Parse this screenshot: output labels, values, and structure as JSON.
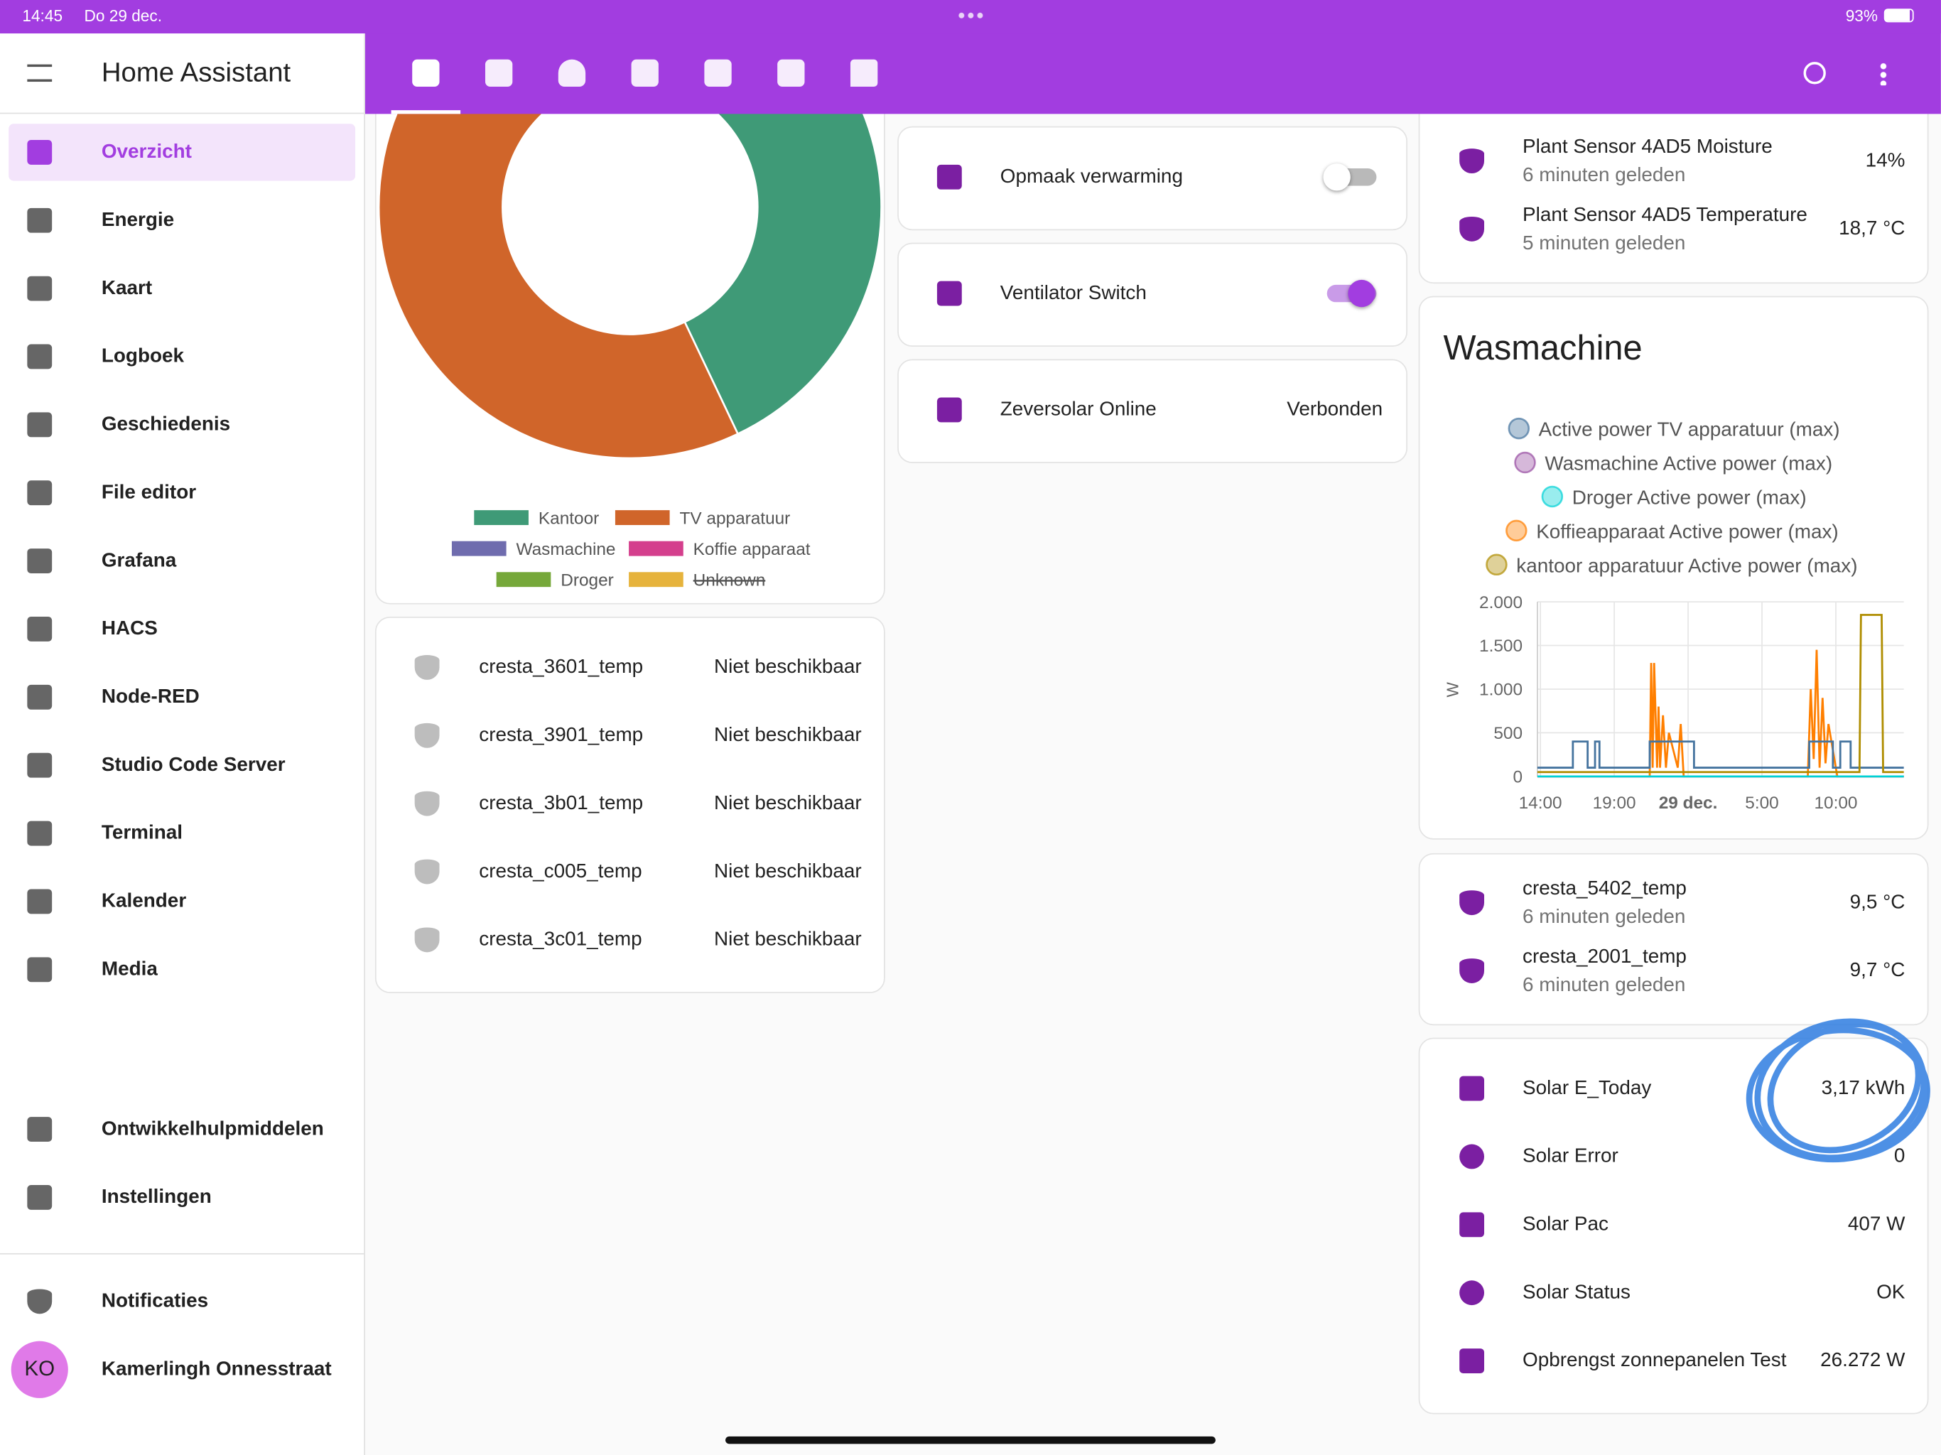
{
  "status_bar": {
    "time": "14:45",
    "date": "Do 29 dec.",
    "battery": "93%"
  },
  "sidebar": {
    "title": "Home Assistant",
    "items": [
      "Overzicht",
      "Energie",
      "Kaart",
      "Logboek",
      "Geschiedenis",
      "File editor",
      "Grafana",
      "HACS",
      "Node-RED",
      "Studio Code Server",
      "Terminal",
      "Kalender",
      "Media"
    ],
    "bottom_items": [
      "Ontwikkelhulpmiddelen",
      "Instellingen"
    ],
    "notifications": "Notificaties",
    "user": {
      "initials": "KO",
      "name": "Kamerlingh Onnesstraat"
    }
  },
  "chart_data": [
    {
      "type": "donut",
      "categories": [
        "Kantoor",
        "TV apparatuur",
        "Wasmachine",
        "Koffie apparaat",
        "Droger",
        "Unknown"
      ],
      "values": [
        41,
        54,
        5,
        0,
        0,
        null
      ],
      "colors": [
        "#3f9a77",
        "#d0652a",
        "#6f6cae",
        "#d43f8d",
        "#76a83a",
        "#e6b33c"
      ],
      "hidden": [
        false,
        false,
        false,
        false,
        false,
        true
      ]
    },
    {
      "type": "line",
      "title": "Wasmachine",
      "y_label": "W",
      "ylim": [
        0,
        2000
      ],
      "yticks": [
        {
          "value": 2000,
          "label": "2.000"
        },
        {
          "value": 1500,
          "label": "1.500"
        },
        {
          "value": 1000,
          "label": "1.000"
        },
        500,
        0
      ],
      "xlim": [
        -0.2,
        24.6
      ],
      "xticks": [
        {
          "value": 0,
          "label": "14:00"
        },
        {
          "value": 5,
          "label": "19:00"
        },
        {
          "value": 10,
          "label": "29 dec."
        },
        {
          "value": 15,
          "label": "5:00"
        },
        {
          "value": 20,
          "label": "10:00"
        }
      ],
      "grid": true,
      "series": [
        {
          "name": "Active power TV apparatuur (max)",
          "color": "#44739e",
          "x": [
            -0.2,
            2.2,
            2.2,
            3.2,
            3.2,
            3.7,
            3.7,
            4.0,
            4.0,
            7.4,
            7.4,
            10.4,
            10.4,
            18.2,
            18.2,
            19.8,
            19.8,
            20.3,
            20.3,
            21.0,
            21.0,
            24.6
          ],
          "values": [
            100,
            100,
            400,
            400,
            100,
            100,
            400,
            400,
            100,
            100,
            400,
            400,
            100,
            100,
            400,
            400,
            100,
            100,
            400,
            400,
            100,
            100
          ]
        },
        {
          "name": "Wasmachine Active power (max)",
          "color": "#984ea3",
          "x": [
            -0.2,
            24.6
          ],
          "values": [
            0,
            0
          ]
        },
        {
          "name": "Droger Active power (max)",
          "color": "#00d2d5",
          "x": [
            -0.2,
            24.6
          ],
          "values": [
            0,
            0
          ]
        },
        {
          "name": "Koffieapparaat Active power (max)",
          "color": "#ff7f00",
          "x": [
            -0.2,
            7.4,
            7.5,
            7.6,
            7.7,
            7.9,
            8.0,
            8.1,
            8.3,
            8.5,
            8.7,
            9.3,
            9.5,
            9.7,
            18.1,
            18.3,
            18.5,
            18.7,
            18.9,
            19.1,
            19.3,
            19.5,
            19.8,
            20.1,
            24.6
          ],
          "values": [
            0,
            0,
            1300,
            100,
            1300,
            100,
            800,
            100,
            700,
            100,
            500,
            100,
            600,
            0,
            0,
            1000,
            200,
            1450,
            100,
            900,
            150,
            600,
            300,
            0,
            0
          ]
        },
        {
          "name": "kantoor apparatuur Active power (max)",
          "color": "#af8d00",
          "x": [
            -0.2,
            21.6,
            21.7,
            23.1,
            23.2,
            24.6
          ],
          "values": [
            50,
            50,
            1850,
            1850,
            50,
            50
          ]
        }
      ]
    }
  ],
  "toggle_cards": [
    {
      "name": "Opmaak verwarming",
      "on": false
    },
    {
      "name": "Ventilator Switch",
      "on": true
    }
  ],
  "status_card": {
    "name": "Zeversolar Online",
    "state": "Verbonden"
  },
  "cresta_card": {
    "rows": [
      {
        "name": "cresta_3601_temp",
        "state": "Niet beschikbaar"
      },
      {
        "name": "cresta_3901_temp",
        "state": "Niet beschikbaar"
      },
      {
        "name": "cresta_3b01_temp",
        "state": "Niet beschikbaar"
      },
      {
        "name": "cresta_c005_temp",
        "state": "Niet beschikbaar"
      },
      {
        "name": "cresta_3c01_temp",
        "state": "Niet beschikbaar"
      }
    ]
  },
  "plant_card": {
    "rows": [
      {
        "name": "Plant Sensor 4AD5 Moisture",
        "updated": "6 minuten geleden",
        "value": "14%"
      },
      {
        "name": "Plant Sensor 4AD5 Temperature",
        "updated": "5 minuten geleden",
        "value": "18,7 °C"
      }
    ]
  },
  "outdoor_card": {
    "rows": [
      {
        "name": "cresta_5402_temp",
        "updated": "6 minuten geleden",
        "value": "9,5 °C"
      },
      {
        "name": "cresta_2001_temp",
        "updated": "6 minuten geleden",
        "value": "9,7 °C"
      }
    ]
  },
  "solar_card": {
    "rows": [
      {
        "name": "Solar E_Today",
        "value": "3,17 kWh"
      },
      {
        "name": "Solar Error",
        "value": "0"
      },
      {
        "name": "Solar Pac",
        "value": "407 W"
      },
      {
        "name": "Solar Status",
        "value": "OK"
      },
      {
        "name": "Opbrengst zonnepanelen Test",
        "value": "26.272 W"
      }
    ]
  }
}
